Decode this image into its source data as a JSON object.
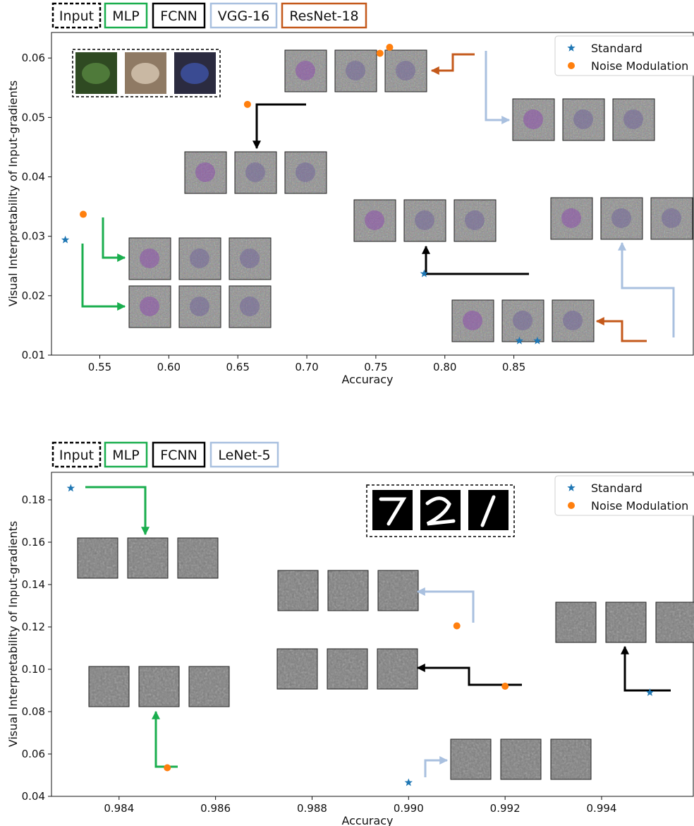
{
  "colors": {
    "input": "#000000",
    "MLP": "#1aae4e",
    "FCNN": "#000000",
    "VGG-16": "#a9c0df",
    "ResNet-18": "#c4591b",
    "LeNet-5": "#a9c0df",
    "standard": "#1f77b4",
    "noise": "#ff7f0e"
  },
  "chart_data": [
    {
      "type": "scatter",
      "title": "",
      "xlabel": "Accuracy",
      "ylabel": "Visual Interpretability of Input-gradients",
      "xlim": [
        0.515,
        0.98
      ],
      "ylim": [
        0.01,
        0.0643
      ],
      "xticks": [
        0.55,
        0.6,
        0.65,
        0.7,
        0.75,
        0.8,
        0.85
      ],
      "xtick_labels": [
        "0.55",
        "0.60",
        "0.65",
        "0.70",
        "0.75",
        "0.80",
        "0.85"
      ],
      "yticks": [
        0.01,
        0.02,
        0.03,
        0.04,
        0.05,
        0.06
      ],
      "ytick_labels": [
        "0.01",
        "0.02",
        "0.03",
        "0.04",
        "0.05",
        "0.06"
      ],
      "model_legend": [
        "Input",
        "MLP",
        "FCNN",
        "VGG-16",
        "ResNet-18"
      ],
      "legend": {
        "placement": "top-right",
        "entries": [
          "Standard",
          "Noise Modulation"
        ]
      },
      "series": [
        {
          "name": "Standard",
          "marker": "star",
          "points": [
            {
              "model": "MLP",
              "x": 0.525,
              "y": 0.0294
            },
            {
              "model": "FCNN",
              "x": 0.785,
              "y": 0.0237
            },
            {
              "model": "ResNet-18",
              "x": 0.854,
              "y": 0.0124
            },
            {
              "model": "VGG-16",
              "x": 0.867,
              "y": 0.0124
            }
          ]
        },
        {
          "name": "Noise Modulation",
          "marker": "circle",
          "points": [
            {
              "model": "MLP",
              "x": 0.538,
              "y": 0.0337
            },
            {
              "model": "FCNN",
              "x": 0.657,
              "y": 0.0522
            },
            {
              "model": "ResNet-18",
              "x": 0.753,
              "y": 0.0608
            },
            {
              "model": "VGG-16",
              "x": 0.76,
              "y": 0.0618
            }
          ]
        }
      ]
    },
    {
      "type": "scatter",
      "title": "",
      "xlabel": "Accuracy",
      "ylabel": "Visual Interpretability of Input-gradients",
      "xlim": [
        0.9826,
        0.9959
      ],
      "ylim": [
        0.04,
        0.193
      ],
      "xticks": [
        0.984,
        0.986,
        0.988,
        0.99,
        0.992,
        0.994
      ],
      "xtick_labels": [
        "0.984",
        "0.986",
        "0.988",
        "0.990",
        "0.992",
        "0.994"
      ],
      "yticks": [
        0.04,
        0.06,
        0.08,
        0.1,
        0.12,
        0.14,
        0.16,
        0.18
      ],
      "ytick_labels": [
        "0.04",
        "0.06",
        "0.08",
        "0.10",
        "0.12",
        "0.14",
        "0.16",
        "0.18"
      ],
      "model_legend": [
        "Input",
        "MLP",
        "FCNN",
        "LeNet-5"
      ],
      "legend": {
        "placement": "top-right",
        "entries": [
          "Standard",
          "Noise Modulation"
        ]
      },
      "series": [
        {
          "name": "Standard",
          "marker": "star",
          "points": [
            {
              "model": "MLP",
              "x": 0.983,
              "y": 0.1855
            },
            {
              "model": "LeNet-5",
              "x": 0.99,
              "y": 0.0465
            },
            {
              "model": "FCNN",
              "x": 0.995,
              "y": 0.089
            }
          ]
        },
        {
          "name": "Noise Modulation",
          "marker": "circle",
          "points": [
            {
              "model": "MLP",
              "x": 0.985,
              "y": 0.0535
            },
            {
              "model": "LeNet-5",
              "x": 0.991,
              "y": 0.1205
            },
            {
              "model": "FCNN",
              "x": 0.992,
              "y": 0.092
            }
          ]
        }
      ]
    }
  ]
}
